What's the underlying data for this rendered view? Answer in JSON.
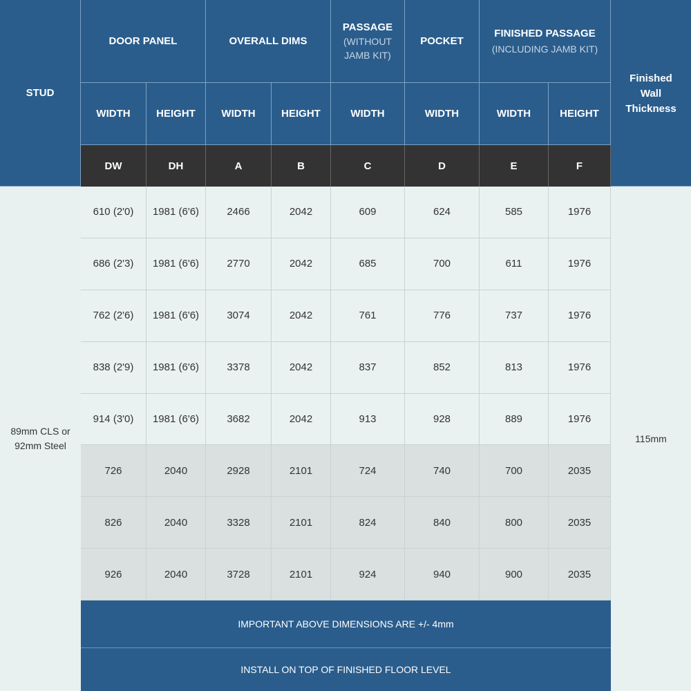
{
  "header": {
    "stud": "STUD",
    "door_panel": "DOOR PANEL",
    "overall_dims": "OVERALL DIMS",
    "passage": "PASSAGE",
    "passage_sub": "(WITHOUT JAMB KIT)",
    "pocket": "POCKET",
    "finished_passage": "FINISHED PASSAGE",
    "finished_passage_sub": "(INCLUDING JAMB KIT)",
    "finished_wall": "Finished Wall Thickness",
    "sub_columns": [
      "WIDTH",
      "HEIGHT",
      "WIDTH",
      "HEIGHT",
      "WIDTH",
      "WIDTH",
      "WIDTH",
      "HEIGHT"
    ],
    "codes": [
      "DW",
      "DH",
      "A",
      "B",
      "C",
      "D",
      "E",
      "F"
    ]
  },
  "stud_value": "89mm CLS or 92mm Steel",
  "wall_thickness_value": "115mm",
  "rows": [
    [
      "610 (2'0)",
      "1981 (6'6)",
      "2466",
      "2042",
      "609",
      "624",
      "585",
      "1976"
    ],
    [
      "686 (2'3)",
      "1981 (6'6)",
      "2770",
      "2042",
      "685",
      "700",
      "611",
      "1976"
    ],
    [
      "762 (2'6)",
      "1981 (6'6)",
      "3074",
      "2042",
      "761",
      "776",
      "737",
      "1976"
    ],
    [
      "838 (2'9)",
      "1981 (6'6)",
      "3378",
      "2042",
      "837",
      "852",
      "813",
      "1976"
    ],
    [
      "914 (3'0)",
      "1981 (6'6)",
      "3682",
      "2042",
      "913",
      "928",
      "889",
      "1976"
    ],
    [
      "726",
      "2040",
      "2928",
      "2101",
      "724",
      "740",
      "700",
      "2035"
    ],
    [
      "826",
      "2040",
      "3328",
      "2101",
      "824",
      "840",
      "800",
      "2035"
    ],
    [
      "926",
      "2040",
      "3728",
      "2101",
      "924",
      "940",
      "900",
      "2035"
    ]
  ],
  "footer": {
    "note1": "IMPORTANT ABOVE DIMENSIONS ARE  +/- 4mm",
    "note2": "INSTALL ON TOP OF FINISHED FLOOR LEVEL"
  },
  "colors": {
    "header_blue": "#2a5d8c",
    "code_row": "#333333",
    "row_light": "#e9f1f1",
    "row_gray": "#d9e0df",
    "background": "#e8f1f0"
  }
}
